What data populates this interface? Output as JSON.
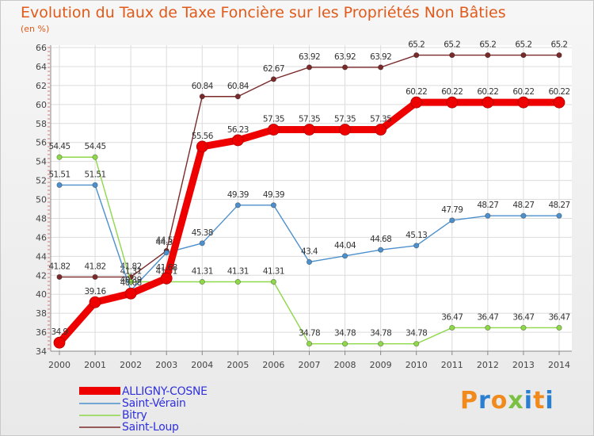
{
  "chart_data": {
    "type": "line",
    "title": "Evolution du Taux de Taxe Foncière sur les Propriétés Non Bâties",
    "unit_label": "(en %)",
    "xlabel": "",
    "ylabel": "(en %)",
    "x": [
      "2000",
      "2001",
      "2002",
      "2003",
      "2004",
      "2005",
      "2006",
      "2007",
      "2008",
      "2009",
      "2010",
      "2011",
      "2012",
      "2013",
      "2014"
    ],
    "ylim": [
      34,
      66
    ],
    "yticks": [
      "34",
      "36",
      "38",
      "40",
      "42",
      "44",
      "46",
      "48",
      "50",
      "52",
      "54",
      "56",
      "58",
      "60",
      "62",
      "64",
      "66"
    ],
    "grid": true,
    "series": [
      {
        "name": "Saint-Loup",
        "color": "#7a2a2a",
        "values": [
          41.82,
          41.82,
          41.82,
          44.57,
          60.84,
          60.84,
          62.67,
          63.92,
          63.92,
          63.92,
          65.2,
          65.2,
          65.2,
          65.2,
          65.2
        ],
        "labels": [
          "41.82",
          "41.82",
          "41.82",
          "44.57",
          "60.84",
          "60.84",
          "62.67",
          "63.92",
          "63.92",
          "63.92",
          "65.2",
          "65.2",
          "65.2",
          "65.2",
          "65.2"
        ]
      },
      {
        "name": "Bitry",
        "color": "#8ed84a",
        "values": [
          54.45,
          54.45,
          41.31,
          41.31,
          41.31,
          41.31,
          41.31,
          34.78,
          34.78,
          34.78,
          34.78,
          36.47,
          36.47,
          36.47,
          36.47
        ],
        "labels": [
          "54.45",
          "54.45",
          "41.31",
          "41.31",
          "41.31",
          "41.31",
          "41.31",
          "34.78",
          "34.78",
          "34.78",
          "34.78",
          "36.47",
          "36.47",
          "36.47",
          "36.47"
        ]
      },
      {
        "name": "Saint-Vérain",
        "color": "#4d90cc",
        "values": [
          51.51,
          51.51,
          40.39,
          44.38,
          45.38,
          49.39,
          49.39,
          43.4,
          44.04,
          44.68,
          45.13,
          47.79,
          48.27,
          48.27,
          48.27
        ],
        "labels": [
          "51.51",
          "51.51",
          "40.39",
          "44.38",
          "45.38",
          "49.39",
          "49.39",
          "43.4",
          "44.04",
          "44.68",
          "45.13",
          "47.79",
          "48.27",
          "48.27",
          "48.27"
        ]
      },
      {
        "name": "ALLIGNY-COSNE",
        "color": "#ee0000",
        "values": [
          34.9,
          39.16,
          40.08,
          41.68,
          55.56,
          56.23,
          57.35,
          57.35,
          57.35,
          57.35,
          60.22,
          60.22,
          60.22,
          60.22,
          60.22
        ],
        "labels": [
          "34.9",
          "39.16",
          "40.08",
          "41.68",
          "55.56",
          "56.23",
          "57.35",
          "57.35",
          "57.35",
          "57.35",
          "60.22",
          "60.22",
          "60.22",
          "60.22",
          "60.22"
        ]
      }
    ],
    "legend": [
      "ALLIGNY-COSNE",
      "Saint-Vérain",
      "Bitry",
      "Saint-Loup"
    ],
    "legend_position": "bottom-left"
  },
  "brand": {
    "letters": [
      "P",
      "r",
      "o",
      "x",
      "i",
      "t",
      "i"
    ],
    "colors": [
      "#f08a1c",
      "#2a7fd0",
      "#f08a1c",
      "#7ac143",
      "#2a7fd0",
      "#f08a1c",
      "#2a7fd0"
    ]
  }
}
